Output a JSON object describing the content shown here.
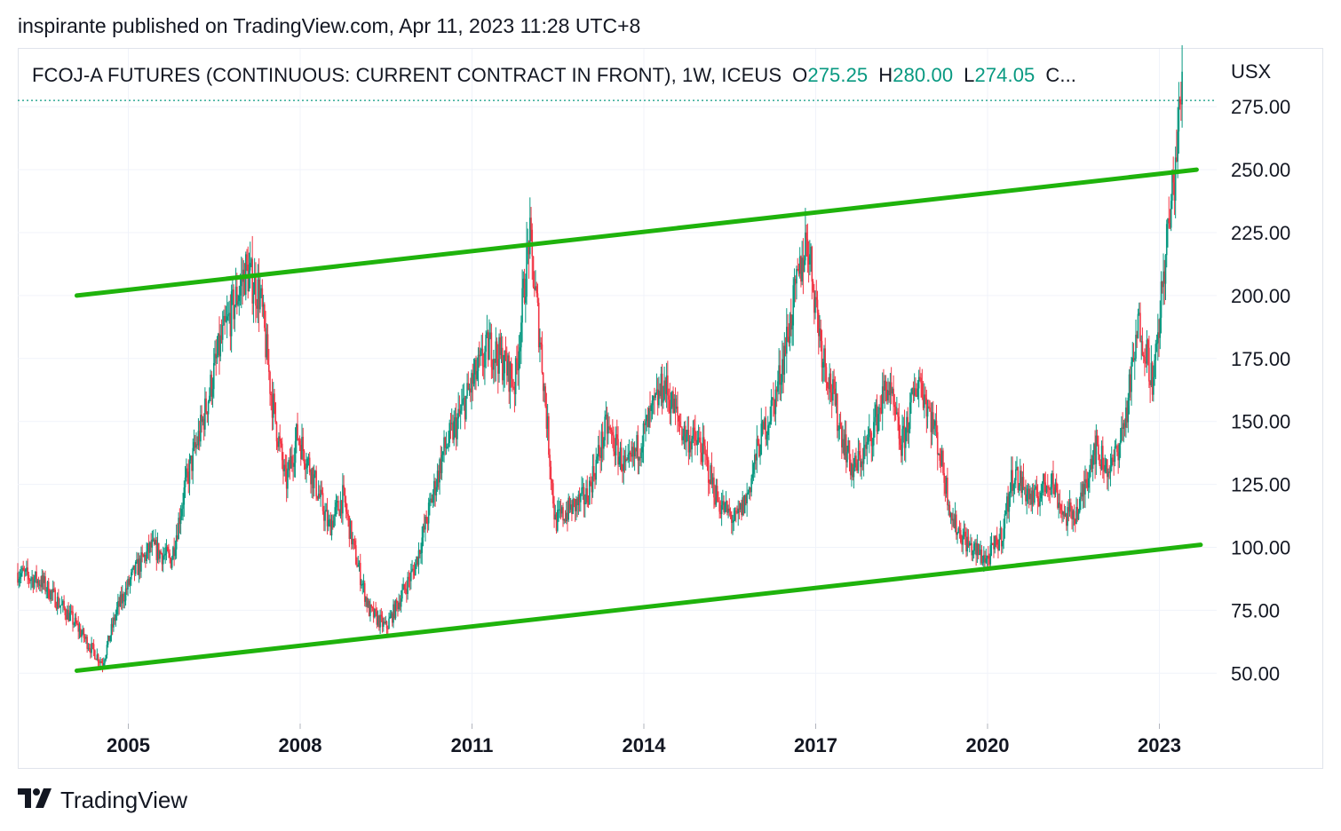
{
  "header": {
    "publisher_line": "inspirante published on TradingView.com, Apr 11, 2023 11:28 UTC+8"
  },
  "legend": {
    "symbol": "FCOJ-A FUTURES (CONTINUOUS: CURRENT CONTRACT IN FRONT), 1W, ICEUS",
    "open_label": "O",
    "open_value": "275.25",
    "high_label": "H",
    "high_value": "280.00",
    "low_label": "L",
    "low_value": "274.05",
    "close_label": "C..."
  },
  "currency": "USX",
  "footer": {
    "brand": "TradingView"
  },
  "colors": {
    "up": "#089981",
    "down": "#f23645",
    "trendline": "#1fb30c",
    "grid": "#f0f3fa",
    "last_price_line": "#089981"
  },
  "icons": {
    "logo": "tradingview-logo-icon"
  },
  "chart_data": {
    "type": "candlestick",
    "x_ticks": [
      {
        "label": "2005",
        "value": 2005
      },
      {
        "label": "2008",
        "value": 2008
      },
      {
        "label": "2011",
        "value": 2011
      },
      {
        "label": "2014",
        "value": 2014
      },
      {
        "label": "2017",
        "value": 2017
      },
      {
        "label": "2020",
        "value": 2020
      },
      {
        "label": "2023",
        "value": 2023
      }
    ],
    "y_ticks": [
      "50.00",
      "75.00",
      "100.00",
      "125.00",
      "150.00",
      "175.00",
      "200.00",
      "225.00",
      "250.00",
      "275.00"
    ],
    "xlim": [
      2003.07,
      2024.0
    ],
    "ylim": [
      30,
      298
    ],
    "grid": true,
    "last_price": 277.5,
    "price_path": [
      [
        2003.07,
        90
      ],
      [
        2003.5,
        86
      ],
      [
        2004.0,
        72
      ],
      [
        2004.35,
        60
      ],
      [
        2004.55,
        54
      ],
      [
        2004.8,
        75
      ],
      [
        2005.1,
        90
      ],
      [
        2005.4,
        100
      ],
      [
        2005.75,
        95
      ],
      [
        2006.0,
        125
      ],
      [
        2006.3,
        150
      ],
      [
        2006.6,
        180
      ],
      [
        2006.9,
        200
      ],
      [
        2007.05,
        210
      ],
      [
        2007.3,
        200
      ],
      [
        2007.5,
        160
      ],
      [
        2007.75,
        125
      ],
      [
        2007.95,
        145
      ],
      [
        2008.2,
        130
      ],
      [
        2008.5,
        108
      ],
      [
        2008.75,
        120
      ],
      [
        2008.95,
        98
      ],
      [
        2009.2,
        75
      ],
      [
        2009.5,
        68
      ],
      [
        2009.75,
        80
      ],
      [
        2010.0,
        92
      ],
      [
        2010.2,
        110
      ],
      [
        2010.5,
        138
      ],
      [
        2010.75,
        150
      ],
      [
        2011.0,
        165
      ],
      [
        2011.3,
        180
      ],
      [
        2011.5,
        175
      ],
      [
        2011.75,
        165
      ],
      [
        2012.0,
        224
      ],
      [
        2012.2,
        180
      ],
      [
        2012.45,
        110
      ],
      [
        2012.7,
        115
      ],
      [
        2013.0,
        120
      ],
      [
        2013.35,
        148
      ],
      [
        2013.7,
        130
      ],
      [
        2014.0,
        145
      ],
      [
        2014.35,
        165
      ],
      [
        2014.7,
        145
      ],
      [
        2015.0,
        140
      ],
      [
        2015.3,
        118
      ],
      [
        2015.6,
        110
      ],
      [
        2015.8,
        120
      ],
      [
        2016.0,
        140
      ],
      [
        2016.3,
        160
      ],
      [
        2016.6,
        195
      ],
      [
        2016.85,
        224
      ],
      [
        2017.1,
        180
      ],
      [
        2017.4,
        150
      ],
      [
        2017.65,
        130
      ],
      [
        2017.9,
        140
      ],
      [
        2018.25,
        165
      ],
      [
        2018.5,
        140
      ],
      [
        2018.8,
        168
      ],
      [
        2019.1,
        145
      ],
      [
        2019.4,
        110
      ],
      [
        2019.7,
        100
      ],
      [
        2020.0,
        95
      ],
      [
        2020.25,
        105
      ],
      [
        2020.45,
        130
      ],
      [
        2020.8,
        118
      ],
      [
        2021.1,
        128
      ],
      [
        2021.35,
        112
      ],
      [
        2021.6,
        115
      ],
      [
        2021.85,
        140
      ],
      [
        2022.15,
        130
      ],
      [
        2022.4,
        150
      ],
      [
        2022.65,
        190
      ],
      [
        2022.9,
        165
      ],
      [
        2023.1,
        215
      ],
      [
        2023.25,
        245
      ],
      [
        2023.4,
        285
      ]
    ],
    "trendlines": [
      {
        "name": "upper",
        "x": [
          2004.1,
          2023.65
        ],
        "y": [
          200,
          250
        ]
      },
      {
        "name": "lower",
        "x": [
          2004.1,
          2023.72
        ],
        "y": [
          51,
          101
        ]
      }
    ]
  }
}
